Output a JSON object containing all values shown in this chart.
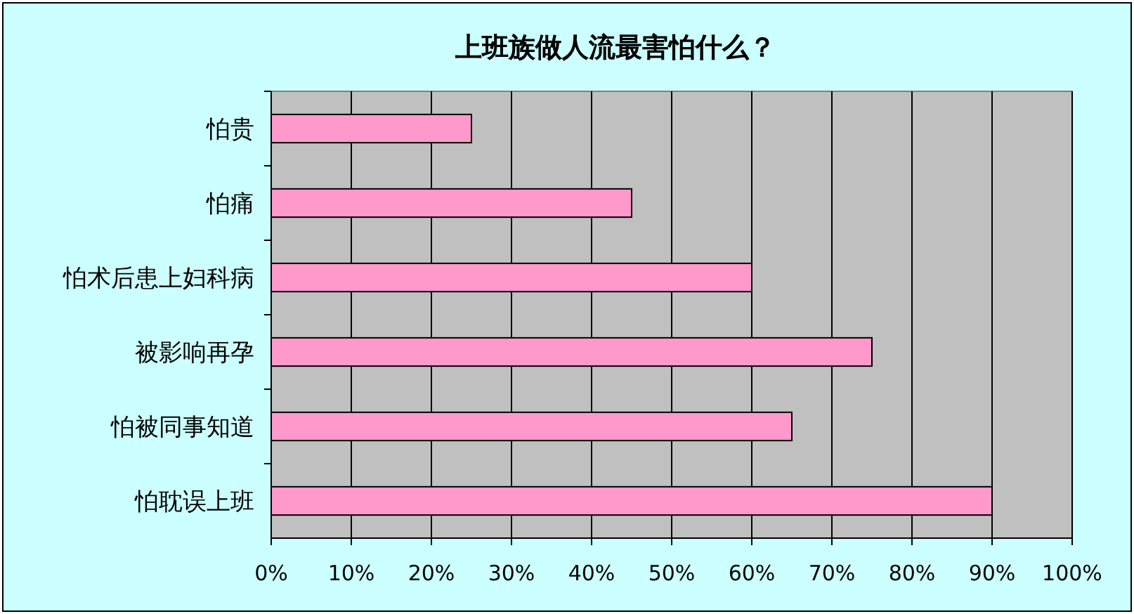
{
  "chart_data": {
    "type": "bar",
    "orientation": "horizontal",
    "title": "上班族做人流最害怕什么？",
    "categories": [
      "怕贵",
      "怕痛",
      "怕术后患上妇科病",
      "被影响再孕",
      "怕被同事知道",
      "怕耽误上班"
    ],
    "values": [
      25,
      45,
      60,
      75,
      65,
      90
    ],
    "color": "#ff99cc",
    "xlim": [
      0,
      100
    ],
    "xticks": [
      {
        "value": 0,
        "label": "0%"
      },
      {
        "value": 10,
        "label": "10%"
      },
      {
        "value": 20,
        "label": "20%"
      },
      {
        "value": 30,
        "label": "30%"
      },
      {
        "value": 40,
        "label": "40%"
      },
      {
        "value": 50,
        "label": "50%"
      },
      {
        "value": 60,
        "label": "60%"
      },
      {
        "value": 70,
        "label": "70%"
      },
      {
        "value": 80,
        "label": "80%"
      },
      {
        "value": 90,
        "label": "90%"
      },
      {
        "value": 100,
        "label": "100%"
      }
    ],
    "grid": "x"
  }
}
